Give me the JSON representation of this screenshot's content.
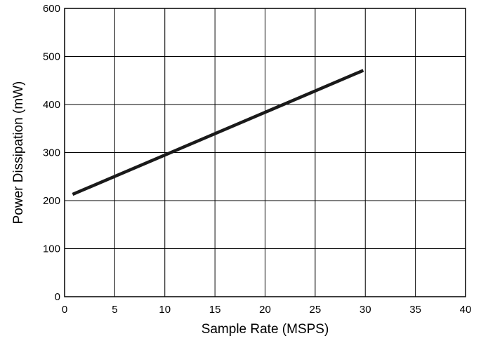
{
  "chart_data": {
    "type": "line",
    "title": "",
    "xlabel": "Sample Rate (MSPS)",
    "ylabel": "Power Dissipation (mW)",
    "xlim": [
      0,
      40
    ],
    "ylim": [
      0,
      600
    ],
    "xticks": [
      0,
      5,
      10,
      15,
      20,
      25,
      30,
      35,
      40
    ],
    "yticks": [
      0,
      100,
      200,
      300,
      400,
      500,
      600
    ],
    "grid": true,
    "legend": "none",
    "series": [
      {
        "x": [
          0.8,
          29.8
        ],
        "y": [
          213,
          471
        ],
        "color": "#1a1a1a"
      }
    ]
  }
}
